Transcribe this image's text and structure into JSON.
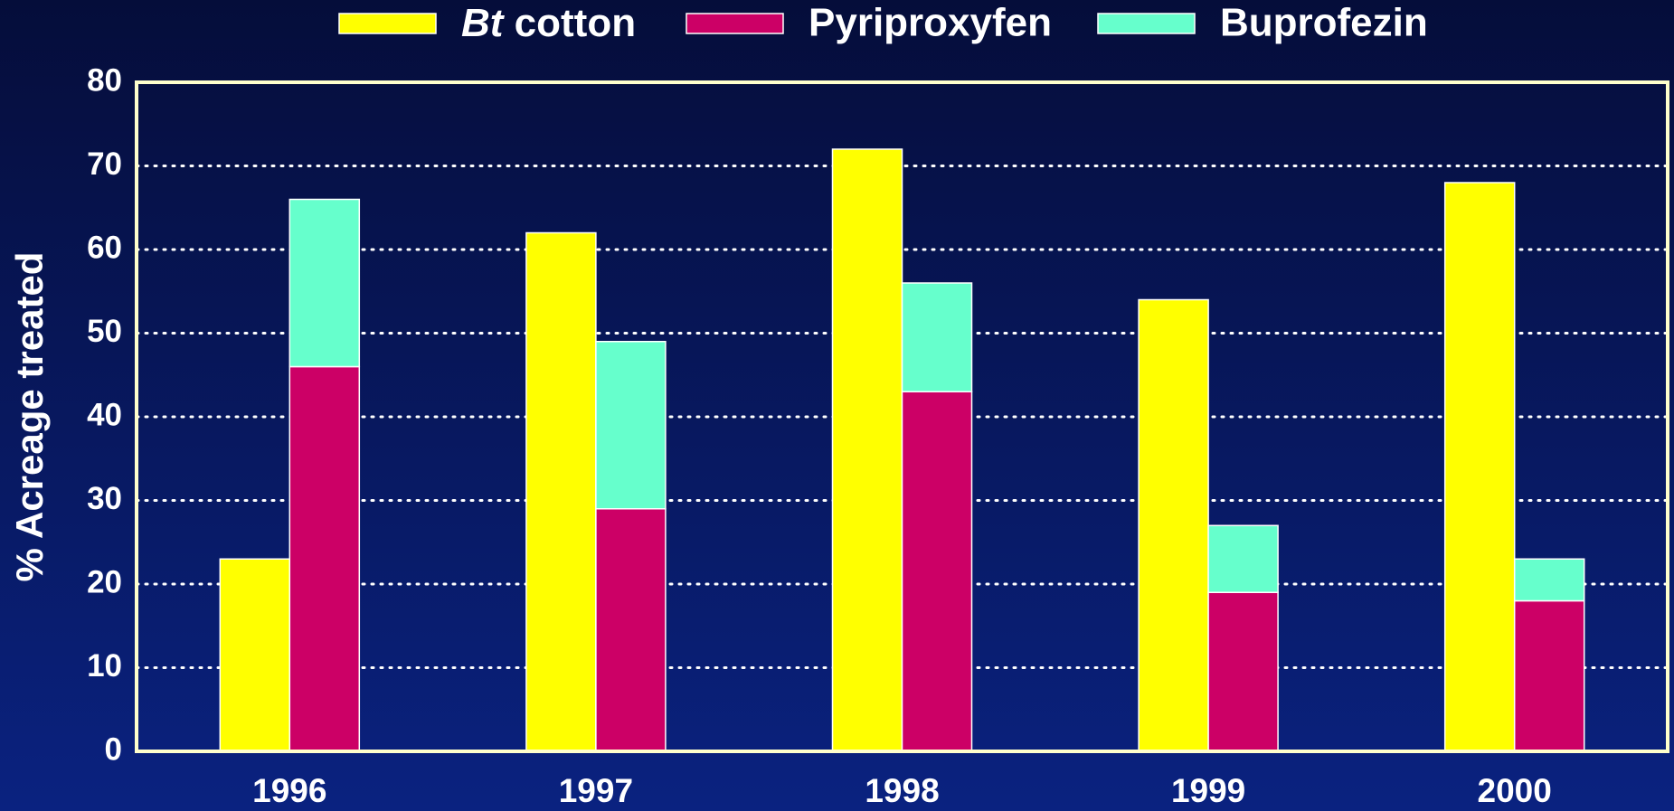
{
  "chart_data": {
    "type": "bar",
    "y_label": "% Acreage treated",
    "categories": [
      "1996",
      "1997",
      "1998",
      "1999",
      "2000"
    ],
    "series": [
      {
        "name": "Bt cotton",
        "color": "#ffff00",
        "values": [
          23,
          62,
          72,
          54,
          68
        ]
      },
      {
        "name": "Pyriproxyfen",
        "color": "#cc0066",
        "values": [
          46,
          29,
          43,
          19,
          18
        ]
      },
      {
        "name": "Buprofezin",
        "color": "#66ffcc",
        "values": [
          20,
          20,
          13,
          8,
          5
        ]
      }
    ],
    "ylim": [
      0,
      80
    ],
    "yticks": [
      0,
      10,
      20,
      30,
      40,
      50,
      60,
      70,
      80
    ],
    "grid": true
  }
}
